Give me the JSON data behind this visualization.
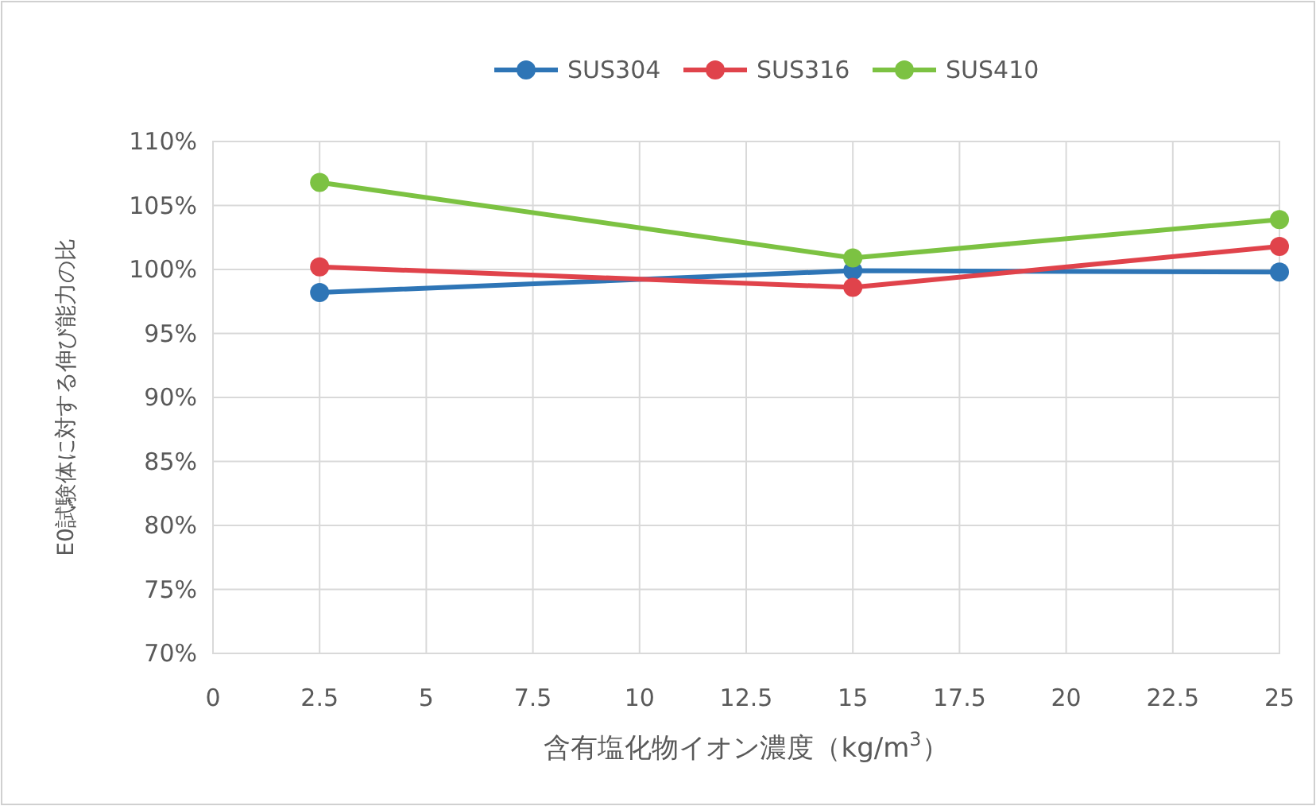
{
  "chart_data": {
    "type": "line",
    "xlabel": "含有塩化物イオン濃度（kg/m$^{3}$）",
    "ylabel": "E0試験体に対する伸び能力の比",
    "x": [
      2.5,
      15,
      25
    ],
    "series": [
      {
        "name": "SUS304",
        "color": "#2e75b6",
        "values": [
          98.2,
          99.9,
          99.8
        ]
      },
      {
        "name": "SUS316",
        "color": "#e0434b",
        "values": [
          100.2,
          98.6,
          101.8
        ]
      },
      {
        "name": "SUS410",
        "color": "#7cc242",
        "values": [
          106.8,
          100.9,
          103.9
        ]
      }
    ],
    "xlim": [
      0,
      25
    ],
    "xticks": [
      0,
      2.5,
      5,
      7.5,
      10,
      12.5,
      15,
      17.5,
      20,
      22.5,
      25
    ],
    "ylim": [
      70,
      110
    ],
    "yticks": [
      {
        "value": 70,
        "label": "70%"
      },
      {
        "value": 75,
        "label": "75%"
      },
      {
        "value": 80,
        "label": "80%"
      },
      {
        "value": 85,
        "label": "85%"
      },
      {
        "value": 90,
        "label": "90%"
      },
      {
        "value": 95,
        "label": "95%"
      },
      {
        "value": 100,
        "label": "100%"
      },
      {
        "value": 105,
        "label": "105%"
      },
      {
        "value": 110,
        "label": "110%"
      }
    ],
    "grid": true,
    "legend": "top",
    "marker": "circle",
    "line_style": "solid"
  }
}
